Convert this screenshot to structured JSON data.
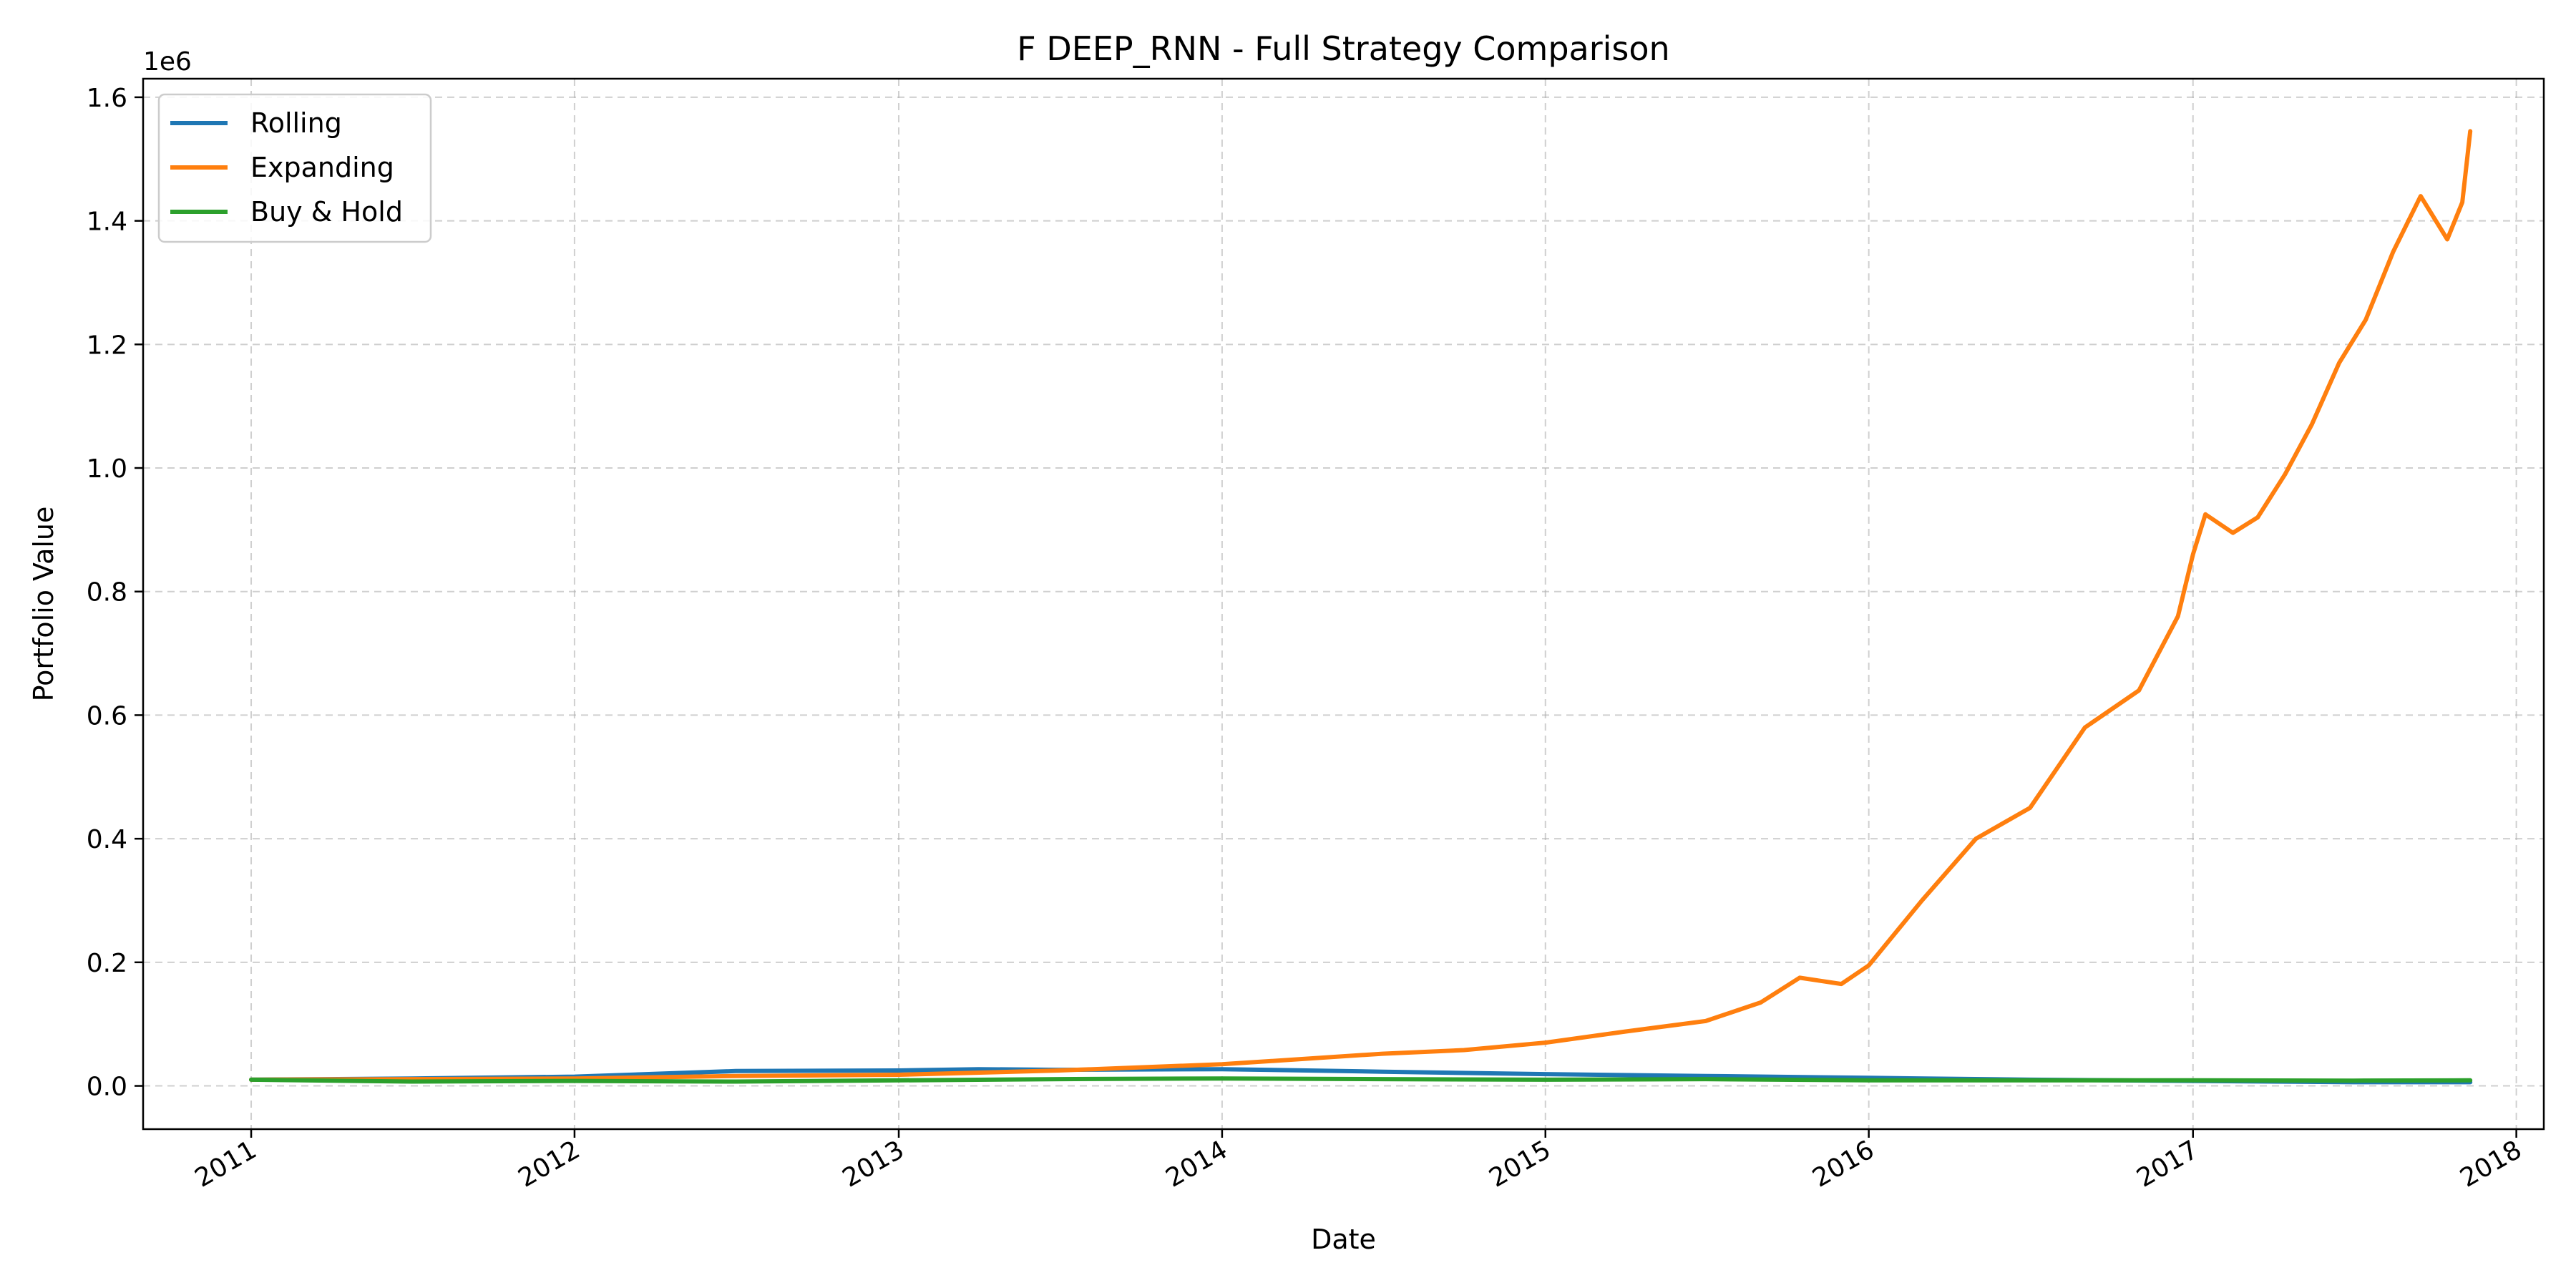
{
  "chart_data": {
    "type": "line",
    "title": "F DEEP_RNN - Full Strategy Comparison",
    "xlabel": "Date",
    "ylabel": "Portfolio Value",
    "y_offset_label": "1e6",
    "xlim": [
      "2010-09-01",
      "2018-02-01"
    ],
    "ylim": [
      -70000,
      1630000
    ],
    "x_ticks": [
      "2011-01-01",
      "2012-01-01",
      "2013-01-01",
      "2014-01-01",
      "2015-01-01",
      "2016-01-01",
      "2017-01-01",
      "2018-01-01"
    ],
    "x_tick_labels": [
      "2011",
      "2012",
      "2013",
      "2014",
      "2015",
      "2016",
      "2017",
      "2018"
    ],
    "y_ticks": [
      0,
      200000,
      400000,
      600000,
      800000,
      1000000,
      1200000,
      1400000,
      1600000
    ],
    "y_tick_labels": [
      "0.0",
      "0.2",
      "0.4",
      "0.6",
      "0.8",
      "1.0",
      "1.2",
      "1.4",
      "1.6"
    ],
    "grid": true,
    "legend_position": "top-left",
    "series": [
      {
        "name": "Rolling",
        "color": "#1f77b4",
        "x": [
          "2011-01-01",
          "2011-07-01",
          "2012-01-01",
          "2012-07-01",
          "2013-01-01",
          "2013-04-01",
          "2013-07-01",
          "2014-01-01",
          "2014-07-01",
          "2015-01-01",
          "2015-07-01",
          "2016-01-01",
          "2016-07-01",
          "2017-01-01",
          "2017-07-01",
          "2017-11-10"
        ],
        "values": [
          10000,
          12000,
          15000,
          24000,
          25000,
          27000,
          26000,
          27000,
          23000,
          19000,
          16000,
          13000,
          10000,
          8000,
          6000,
          6000
        ]
      },
      {
        "name": "Expanding",
        "color": "#ff7f0e",
        "x": [
          "2011-01-01",
          "2011-07-01",
          "2012-01-01",
          "2012-07-01",
          "2013-01-01",
          "2013-07-01",
          "2014-01-01",
          "2014-07-01",
          "2014-10-01",
          "2015-01-01",
          "2015-04-01",
          "2015-07-01",
          "2015-09-01",
          "2015-10-15",
          "2015-12-01",
          "2016-01-01",
          "2016-03-01",
          "2016-05-01",
          "2016-07-01",
          "2016-09-01",
          "2016-11-01",
          "2016-12-15",
          "2017-01-01",
          "2017-01-15",
          "2017-02-15",
          "2017-03-15",
          "2017-04-15",
          "2017-05-15",
          "2017-06-15",
          "2017-07-15",
          "2017-08-15",
          "2017-09-15",
          "2017-10-15",
          "2017-11-01",
          "2017-11-10"
        ],
        "values": [
          10000,
          11000,
          12000,
          16000,
          18000,
          25000,
          35000,
          52000,
          58000,
          70000,
          88000,
          105000,
          135000,
          175000,
          165000,
          195000,
          300000,
          400000,
          450000,
          580000,
          640000,
          760000,
          860000,
          925000,
          895000,
          920000,
          990000,
          1070000,
          1170000,
          1240000,
          1350000,
          1440000,
          1370000,
          1430000,
          1545000
        ]
      },
      {
        "name": "Buy & Hold",
        "color": "#2ca02c",
        "x": [
          "2011-01-01",
          "2011-07-01",
          "2012-01-01",
          "2012-07-01",
          "2013-01-01",
          "2013-07-01",
          "2014-01-01",
          "2014-07-01",
          "2015-01-01",
          "2015-07-01",
          "2016-01-01",
          "2016-07-01",
          "2017-01-01",
          "2017-07-01",
          "2017-11-10"
        ],
        "values": [
          10000,
          7000,
          8000,
          7000,
          9000,
          11000,
          12000,
          11000,
          10000,
          11000,
          9000,
          9000,
          9000,
          8500,
          9000
        ]
      }
    ]
  }
}
